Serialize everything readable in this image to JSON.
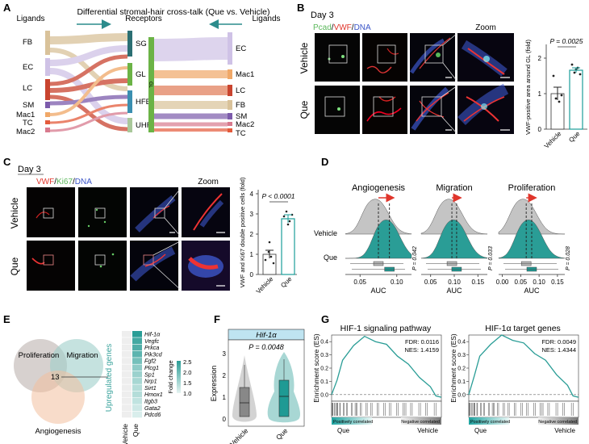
{
  "figure": {
    "panelA": {
      "letter": "A",
      "title": "Differential stromal-hair cross-talk (Que vs. Vehicle)",
      "ligands_label_left": "Ligands",
      "receptors_label": "Receptors",
      "ligands_label_right": "Ligands",
      "left_ligands": [
        "FB",
        "EC",
        "LC",
        "SM",
        "Mac1",
        "TC",
        "Mac2"
      ],
      "receptors": [
        "SG",
        "GL",
        "HFB",
        "UHF"
      ],
      "gl_short": "GL",
      "right_ligands": [
        "EC",
        "Mac1",
        "LC",
        "FB",
        "SM",
        "Mac2",
        "TC"
      ],
      "colors": {
        "FB": "#d9c29a",
        "EC": "#cfc2e6",
        "LC": "#c9442f",
        "SM": "#7c5bab",
        "Mac1": "#f0a868",
        "TC": "#e45b3b",
        "Mac2": "#d87a8e",
        "SG": "#2b6f73",
        "GL": "#6bb346",
        "HFB": "#3b8fb0",
        "UHF": "#a9c89a"
      }
    },
    "panelB": {
      "letter": "B",
      "day": "Day 3",
      "stain_pcad": "Pcad",
      "stain_vwf": "VWF",
      "stain_dna": "DNA",
      "sep": "/",
      "zoom": "Zoom",
      "row_vehicle": "Vehicle",
      "row_que": "Que",
      "p_value": "P = 0.0025",
      "ylabel": "VWF-positive area around GL (fold)",
      "ticks": [
        "0",
        "1",
        "2"
      ],
      "groups": [
        "Vehicle",
        "Que"
      ],
      "values": [
        1.0,
        1.65
      ]
    },
    "panelC": {
      "letter": "C",
      "day": "Day 3",
      "stain_vwf": "VWF",
      "stain_ki67": "Ki67",
      "stain_dna": "DNA",
      "sep": "/",
      "zoom": "Zoom",
      "row_vehicle": "Vehicle",
      "row_que": "Que",
      "p_value": "P < 0.0001",
      "ylabel": "VWF and Ki67 double positive cells (fold)",
      "ticks": [
        "0",
        "1",
        "2",
        "3",
        "4"
      ],
      "groups": [
        "Vehicle",
        "Que"
      ],
      "values": [
        1.0,
        2.75
      ]
    },
    "panelD": {
      "letter": "D",
      "titles": [
        "Angiogenesis",
        "Migration",
        "Proliferation"
      ],
      "xlabel": "AUC",
      "row_vehicle": "Vehicle",
      "row_que": "Que",
      "pvals": [
        "P = 0.042",
        "P = 0.033",
        "P = 0.028"
      ],
      "ticks": [
        [
          "0.05",
          "0.10"
        ],
        [
          "0.05",
          "0.10",
          "0.15"
        ],
        [
          "0.00",
          "0.05",
          "0.10",
          "0.15"
        ]
      ]
    },
    "panelE": {
      "letter": "E",
      "venn": [
        "Proliferation",
        "Migration",
        "Angiogenesis"
      ],
      "overlap": "13",
      "side_label": "Upregulated genes",
      "genes": [
        "Hif-1α",
        "Vegfc",
        "Prkca",
        "Pik3cd",
        "Fgf2",
        "Plcg1",
        "Sp1",
        "Nrp1",
        "Sirt1",
        "Hmox1",
        "Itgb3",
        "Gata2",
        "Pdcd6"
      ],
      "fold_values": [
        2.5,
        2.3,
        2.2,
        2.1,
        1.9,
        1.7,
        1.6,
        1.5,
        1.4,
        1.4,
        1.3,
        1.2,
        1.1
      ],
      "legend_title": "Fold change",
      "legend_ticks": [
        "2.5",
        "2.0",
        "1.5",
        "1.0"
      ],
      "columns": [
        "Vehicle",
        "Que"
      ]
    },
    "panelF": {
      "letter": "F",
      "gene": "Hif-1α",
      "p_value": "P = 0.0048",
      "ylabel": "Expression",
      "ticks": [
        "0",
        "1",
        "2",
        "3"
      ],
      "groups": [
        "Vehicle",
        "Que"
      ]
    },
    "panelG": {
      "letter": "G",
      "plot1_title": "HIF-1 signaling pathway",
      "plot1_fdr": "FDR: 0.0116",
      "plot1_nes": "NES: 1.4159",
      "plot2_title": "HIF-1α target genes",
      "plot2_fdr": "FDR: 0.0049",
      "plot2_nes": "NES: 1.4344",
      "ylabel": "Enrichment score (ES)",
      "ticks": [
        "0.0",
        "0.1",
        "0.2",
        "0.3",
        "0.4"
      ],
      "pos_label": "Positively correlated",
      "neg_label": "Negative correlated",
      "left": "Que",
      "right": "Vehicle"
    }
  },
  "chart_data": [
    {
      "type": "bar",
      "title": "",
      "categories": [
        "Vehicle",
        "Que"
      ],
      "values": [
        1.0,
        1.65
      ],
      "ylabel": "VWF-positive area around GL (fold)",
      "ylim": [
        0,
        2.2
      ]
    },
    {
      "type": "bar",
      "title": "",
      "categories": [
        "Vehicle",
        "Que"
      ],
      "values": [
        1.0,
        2.75
      ],
      "ylabel": "VWF and Ki67 double positive cells (fold)",
      "ylim": [
        0,
        4
      ]
    },
    {
      "type": "area",
      "title": "Angiogenesis",
      "xlabel": "AUC",
      "series": [
        {
          "name": "Vehicle",
          "peak": 0.075
        },
        {
          "name": "Que",
          "peak": 0.09
        }
      ]
    },
    {
      "type": "area",
      "title": "Migration",
      "xlabel": "AUC",
      "series": [
        {
          "name": "Vehicle",
          "peak": 0.095
        },
        {
          "name": "Que",
          "peak": 0.105
        }
      ]
    },
    {
      "type": "area",
      "title": "Proliferation",
      "xlabel": "AUC",
      "series": [
        {
          "name": "Vehicle",
          "peak": 0.065
        },
        {
          "name": "Que",
          "peak": 0.08
        }
      ]
    },
    {
      "type": "line",
      "title": "HIF-1 signaling pathway",
      "ylabel": "Enrichment score (ES)",
      "ylim": [
        -0.05,
        0.45
      ],
      "x": [
        0,
        5,
        10,
        20,
        30,
        40,
        50,
        60,
        70,
        80,
        90,
        95,
        100
      ],
      "values": [
        0,
        0.12,
        0.25,
        0.38,
        0.43,
        0.41,
        0.37,
        0.3,
        0.22,
        0.14,
        0.05,
        0,
        -0.02
      ]
    },
    {
      "type": "line",
      "title": "HIF-1α target genes",
      "ylabel": "Enrichment score (ES)",
      "ylim": [
        -0.05,
        0.45
      ],
      "x": [
        0,
        5,
        10,
        20,
        30,
        40,
        50,
        60,
        70,
        80,
        90,
        95,
        100
      ],
      "values": [
        0,
        0.15,
        0.28,
        0.39,
        0.44,
        0.42,
        0.38,
        0.32,
        0.25,
        0.16,
        0.06,
        0.0,
        -0.02
      ]
    }
  ]
}
